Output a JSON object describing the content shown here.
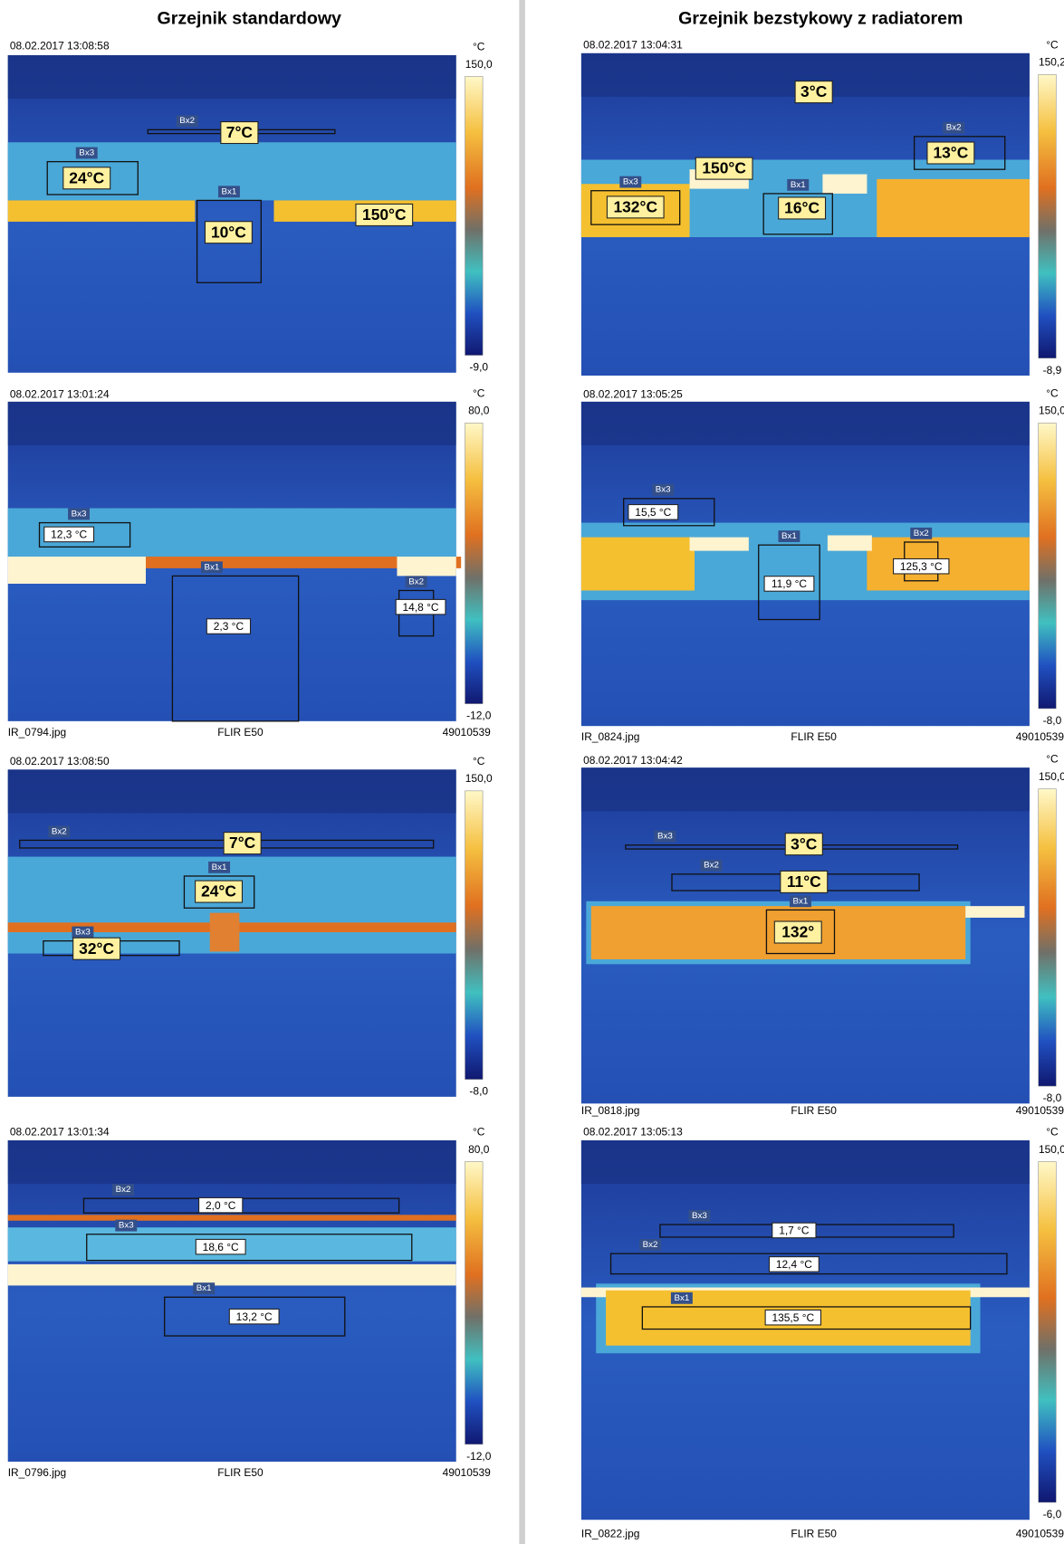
{
  "headers": {
    "left": "Grzejnik standardowy",
    "right": "Grzejnik bezstykowy z radiatorem"
  },
  "panels": [
    {
      "timestamp": "08.02.2017 13:08:58",
      "scale": {
        "unit": "°C",
        "max": "150,0",
        "min": "-9,0"
      },
      "markers": [
        {
          "tag": "Bx2",
          "reading": "7°C"
        },
        {
          "tag": "Bx3",
          "reading": "24°C"
        },
        {
          "tag": "Bx1",
          "reading": "10°C"
        },
        {
          "reading": "150°C"
        }
      ]
    },
    {
      "timestamp": "08.02.2017 13:01:24",
      "scale": {
        "unit": "°C",
        "max": "80,0",
        "min": "-12,0"
      },
      "markers": [
        {
          "tag": "Bx3",
          "reading": "12,3 °C"
        },
        {
          "tag": "Bx1",
          "reading": "2,3 °C"
        },
        {
          "tag": "Bx2",
          "reading": "14,8 °C"
        }
      ],
      "footer": {
        "file": "IR_0794.jpg",
        "camera": "FLIR E50",
        "serial": "49010539"
      }
    },
    {
      "timestamp": "08.02.2017 13:08:50",
      "scale": {
        "unit": "°C",
        "max": "150,0",
        "min": "-8,0"
      },
      "markers": [
        {
          "tag": "Bx2",
          "reading": "7°C"
        },
        {
          "tag": "Bx1",
          "reading": "24°C"
        },
        {
          "tag": "Bx3",
          "reading": "32°C"
        }
      ]
    },
    {
      "timestamp": "08.02.2017 13:01:34",
      "scale": {
        "unit": "°C",
        "max": "80,0",
        "min": "-12,0"
      },
      "markers": [
        {
          "tag": "Bx2",
          "reading": "2,0 °C"
        },
        {
          "tag": "Bx3",
          "reading": "18,6 °C"
        },
        {
          "tag": "Bx1",
          "reading": "13,2 °C"
        }
      ],
      "footer": {
        "file": "IR_0796.jpg",
        "camera": "FLIR E50",
        "serial": "49010539"
      }
    },
    {
      "timestamp": "08.02.2017 13:04:31",
      "scale": {
        "unit": "°C",
        "max": "150,2",
        "min": "-8,9"
      },
      "markers": [
        {
          "reading": "3°C"
        },
        {
          "tag": "Bx2",
          "reading": "13°C"
        },
        {
          "reading": "150°C"
        },
        {
          "tag": "Bx3",
          "reading": "132°C"
        },
        {
          "tag": "Bx1",
          "reading": "16°C"
        }
      ]
    },
    {
      "timestamp": "08.02.2017 13:05:25",
      "scale": {
        "unit": "°C",
        "max": "150,0",
        "min": "-8,0"
      },
      "markers": [
        {
          "tag": "Bx3",
          "reading": "15,5 °C"
        },
        {
          "tag": "Bx1",
          "reading": "11,9 °C"
        },
        {
          "tag": "Bx2",
          "reading": "125,3 °C"
        }
      ],
      "footer": {
        "file": "IR_0824.jpg",
        "camera": "FLIR E50",
        "serial": "49010539"
      }
    },
    {
      "timestamp": "08.02.2017 13:04:42",
      "scale": {
        "unit": "°C",
        "max": "150,0",
        "min": "-8,0"
      },
      "markers": [
        {
          "tag": "Bx3",
          "reading": "3°C"
        },
        {
          "tag": "Bx2",
          "reading": "11°C"
        },
        {
          "tag": "Bx1",
          "reading": "132°"
        }
      ],
      "footer": {
        "file": "IR_0818.jpg",
        "camera": "FLIR E50",
        "serial": "49010539"
      }
    },
    {
      "timestamp": "08.02.2017 13:05:13",
      "scale": {
        "unit": "°C",
        "max": "150,0",
        "min": "-6,0"
      },
      "markers": [
        {
          "tag": "Bx3",
          "reading": "1,7 °C"
        },
        {
          "tag": "Bx2",
          "reading": "12,4 °C"
        },
        {
          "tag": "Bx1",
          "reading": "135,5 °C"
        }
      ],
      "footer": {
        "file": "IR_0822.jpg",
        "camera": "FLIR E50",
        "serial": "49010539"
      }
    }
  ]
}
